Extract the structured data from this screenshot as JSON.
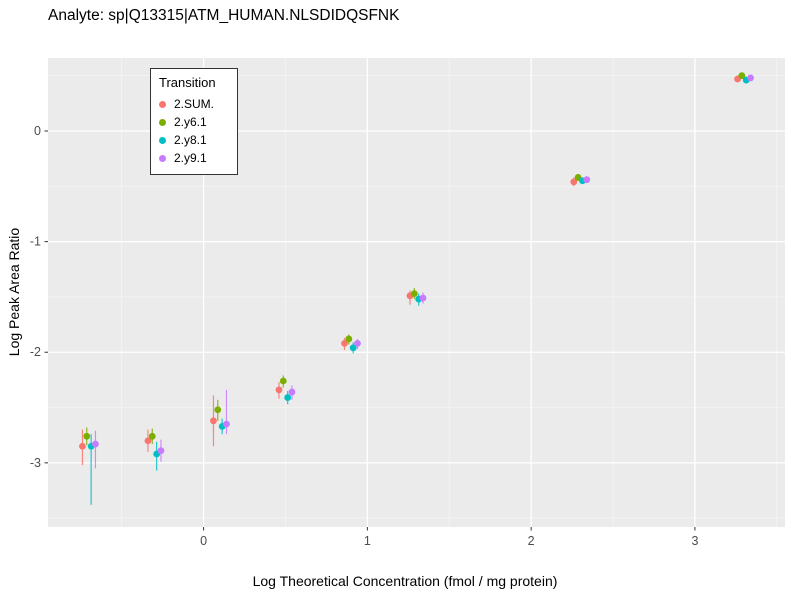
{
  "title": "Analyte: sp|Q13315|ATM_HUMAN.NLSDIDQSFNK",
  "chart_data": {
    "type": "scatter",
    "title": "Analyte: sp|Q13315|ATM_HUMAN.NLSDIDQSFNK",
    "xlabel": "Log Theoretical Concentration (fmol / mg protein)",
    "ylabel": "Log Peak Area Ratio",
    "xlim": [
      -0.95,
      3.55
    ],
    "ylim": [
      -3.58,
      0.66
    ],
    "x_major_ticks": [
      0,
      1,
      2,
      3
    ],
    "x_minor_ticks": [
      -0.5,
      0.5,
      1.5,
      2.5,
      3.5
    ],
    "y_major_ticks": [
      0,
      -1,
      -2,
      -3
    ],
    "y_minor_ticks": [
      0.5,
      -0.5,
      -1.5,
      -2.5,
      -3.5
    ],
    "grid": true,
    "panel_bg": "#EBEBEB",
    "grid_major_color": "#FFFFFF",
    "grid_minor_color": "#F6F6F6",
    "tick_label_color": "#4D4D4D",
    "legend_title": "Transition",
    "legend_position": "top-left-inside",
    "x": [
      -0.7,
      -0.3,
      0.1,
      0.5,
      0.9,
      1.3,
      2.3,
      3.3
    ],
    "series": [
      {
        "name": "2.SUM.",
        "color": "#F8766D",
        "values": [
          -2.85,
          -2.8,
          -2.62,
          -2.34,
          -1.92,
          -1.49,
          -0.46,
          0.47
        ],
        "err_lo": [
          -3.02,
          -2.9,
          -2.85,
          -2.42,
          -1.98,
          -1.57,
          -0.5,
          0.44
        ],
        "err_hi": [
          -2.7,
          -2.7,
          -2.39,
          -2.27,
          -1.87,
          -1.44,
          -0.42,
          0.5
        ]
      },
      {
        "name": "2.y6.1",
        "color": "#7CAE00",
        "values": [
          -2.76,
          -2.76,
          -2.52,
          -2.26,
          -1.88,
          -1.47,
          -0.42,
          0.5
        ],
        "err_lo": [
          -2.84,
          -2.83,
          -2.62,
          -2.32,
          -1.93,
          -1.52,
          -0.45,
          0.47
        ],
        "err_hi": [
          -2.68,
          -2.69,
          -2.43,
          -2.21,
          -1.84,
          -1.42,
          -0.39,
          0.53
        ]
      },
      {
        "name": "2.y8.1",
        "color": "#00BFC4",
        "values": [
          -2.85,
          -2.92,
          -2.67,
          -2.41,
          -1.96,
          -1.52,
          -0.45,
          0.46
        ],
        "err_lo": [
          -3.38,
          -3.07,
          -2.74,
          -2.47,
          -2.01,
          -1.58,
          -0.48,
          0.43
        ],
        "err_hi": [
          -2.74,
          -2.81,
          -2.6,
          -2.35,
          -1.91,
          -1.47,
          -0.42,
          0.49
        ]
      },
      {
        "name": "2.y9.1",
        "color": "#C77CFF",
        "values": [
          -2.83,
          -2.89,
          -2.65,
          -2.36,
          -1.92,
          -1.51,
          -0.44,
          0.48
        ],
        "err_lo": [
          -3.05,
          -2.99,
          -2.74,
          -2.43,
          -1.97,
          -1.56,
          -0.47,
          0.45
        ],
        "err_hi": [
          -2.71,
          -2.79,
          -2.34,
          -2.3,
          -1.88,
          -1.46,
          -0.41,
          0.51
        ]
      }
    ]
  }
}
